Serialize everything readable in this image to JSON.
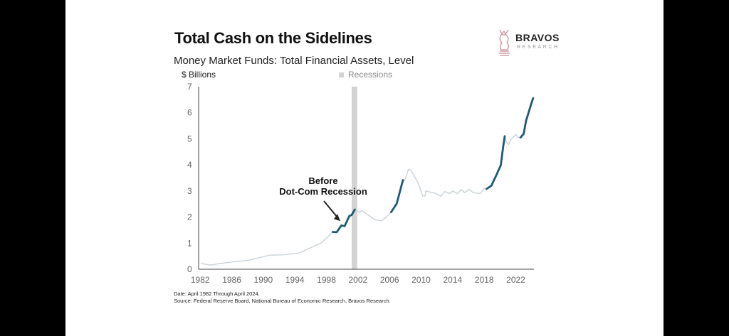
{
  "header": {
    "title": "Total Cash on the Sidelines",
    "subtitle": "Money Market Funds: Total Financial Assets, Level",
    "logo_main": "BRAVOS",
    "logo_sub": "RESEARCH"
  },
  "chart_data": {
    "type": "line",
    "title": "Total Cash on the Sidelines",
    "subtitle": "Money Market Funds: Total Financial Assets, Level",
    "ylabel": "$ Billions",
    "xlabel": "",
    "ylim": [
      0,
      7
    ],
    "xlim": [
      1981.8,
      2024.3
    ],
    "yticks": [
      "0",
      "1",
      "2",
      "3",
      "4",
      "5",
      "6",
      "7"
    ],
    "xticks": [
      1982,
      1986,
      1990,
      1994,
      1998,
      2002,
      2006,
      2010,
      2014,
      2018,
      2022
    ],
    "legend": {
      "label": "Recessions",
      "placement": "top-center",
      "color": "#d3d3d3"
    },
    "recessions": [
      [
        2001.2,
        2001.9
      ]
    ],
    "series": [
      {
        "name": "Money Market Funds Total Financial Assets",
        "color": "#c9d3d8",
        "highlight_color": "#1f5a72",
        "highlight_ranges": [
          [
            1998.8,
            2001.6
          ],
          [
            2006.2,
            2007.7
          ],
          [
            2018.3,
            2020.6
          ],
          [
            2022.6,
            2024.2
          ]
        ],
        "points": [
          [
            1982.1,
            0.22
          ],
          [
            1983.3,
            0.16
          ],
          [
            1984.8,
            0.23
          ],
          [
            1986.3,
            0.29
          ],
          [
            1988.1,
            0.34
          ],
          [
            1990.8,
            0.54
          ],
          [
            1992.3,
            0.55
          ],
          [
            1994.4,
            0.61
          ],
          [
            1995.9,
            0.81
          ],
          [
            1997.4,
            1.02
          ],
          [
            1998.8,
            1.43
          ],
          [
            1999.3,
            1.42
          ],
          [
            1999.9,
            1.68
          ],
          [
            2000.3,
            1.65
          ],
          [
            2000.9,
            2.04
          ],
          [
            2001.2,
            2.08
          ],
          [
            2001.6,
            2.29
          ],
          [
            2002.2,
            2.18
          ],
          [
            2002.5,
            2.25
          ],
          [
            2004.1,
            1.9
          ],
          [
            2005.0,
            1.86
          ],
          [
            2005.6,
            2.01
          ],
          [
            2006.2,
            2.19
          ],
          [
            2006.9,
            2.51
          ],
          [
            2007.7,
            3.42
          ],
          [
            2007.9,
            3.38
          ],
          [
            2008.4,
            3.83
          ],
          [
            2008.7,
            3.8
          ],
          [
            2009.6,
            3.33
          ],
          [
            2010.2,
            2.81
          ],
          [
            2010.5,
            2.81
          ],
          [
            2010.6,
            3.0
          ],
          [
            2011.9,
            2.9
          ],
          [
            2012.5,
            2.8
          ],
          [
            2013.0,
            2.98
          ],
          [
            2013.6,
            2.9
          ],
          [
            2014.0,
            3.0
          ],
          [
            2014.6,
            2.9
          ],
          [
            2015.1,
            3.05
          ],
          [
            2015.5,
            2.94
          ],
          [
            2016.1,
            3.06
          ],
          [
            2016.6,
            2.94
          ],
          [
            2017.5,
            2.9
          ],
          [
            2018.0,
            3.1
          ],
          [
            2018.3,
            3.08
          ],
          [
            2018.9,
            3.2
          ],
          [
            2019.6,
            3.65
          ],
          [
            2020.1,
            3.99
          ],
          [
            2020.4,
            4.7
          ],
          [
            2020.6,
            5.1
          ],
          [
            2020.8,
            4.88
          ],
          [
            2021.1,
            4.78
          ],
          [
            2021.4,
            4.98
          ],
          [
            2022.0,
            5.16
          ],
          [
            2022.3,
            5.05
          ],
          [
            2022.6,
            5.05
          ],
          [
            2023.0,
            5.19
          ],
          [
            2023.3,
            5.69
          ],
          [
            2024.0,
            6.38
          ],
          [
            2024.2,
            6.56
          ]
        ]
      }
    ],
    "annotation": {
      "lines": [
        "Before",
        "Dot-Com Recession"
      ],
      "target": [
        2000.3,
        1.9
      ]
    }
  },
  "footer": {
    "date": "Date: April 1982 Through April 2024.",
    "source": "Source: Federal Reserve Board, National Bureau of Economic Research, Bravos Research."
  }
}
